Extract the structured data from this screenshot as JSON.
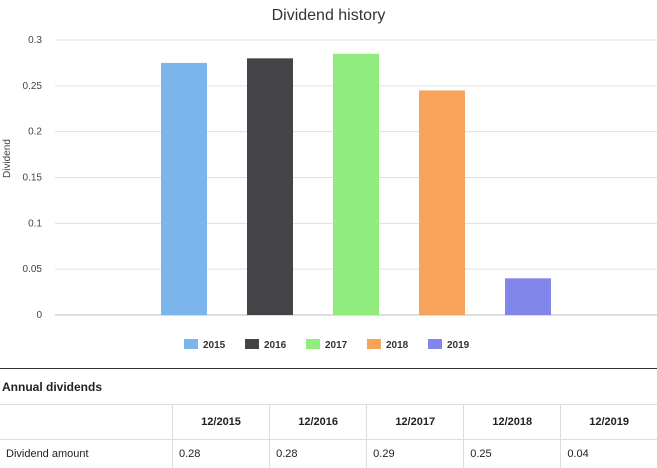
{
  "chart_data": {
    "type": "bar",
    "title": "Dividend history",
    "xlabel": "",
    "ylabel": "Dividend",
    "ylim": [
      0,
      0.3
    ],
    "yticks": [
      "0",
      "0.05",
      "0.1",
      "0.15",
      "0.2",
      "0.25",
      "0.3"
    ],
    "categories": [
      "2015",
      "2016",
      "2017",
      "2018",
      "2019"
    ],
    "values": [
      0.275,
      0.28,
      0.285,
      0.245,
      0.04
    ],
    "colors": [
      "#7cb5ec",
      "#434348",
      "#90ed7d",
      "#f7a35c",
      "#8085e9"
    ],
    "legend_position": "bottom",
    "grid": true
  },
  "table": {
    "title": "Annual dividends",
    "columns": [
      "12/2015",
      "12/2016",
      "12/2017",
      "12/2018",
      "12/2019"
    ],
    "row_label": "Dividend amount",
    "values": [
      "0.28",
      "0.28",
      "0.29",
      "0.25",
      "0.04"
    ]
  }
}
